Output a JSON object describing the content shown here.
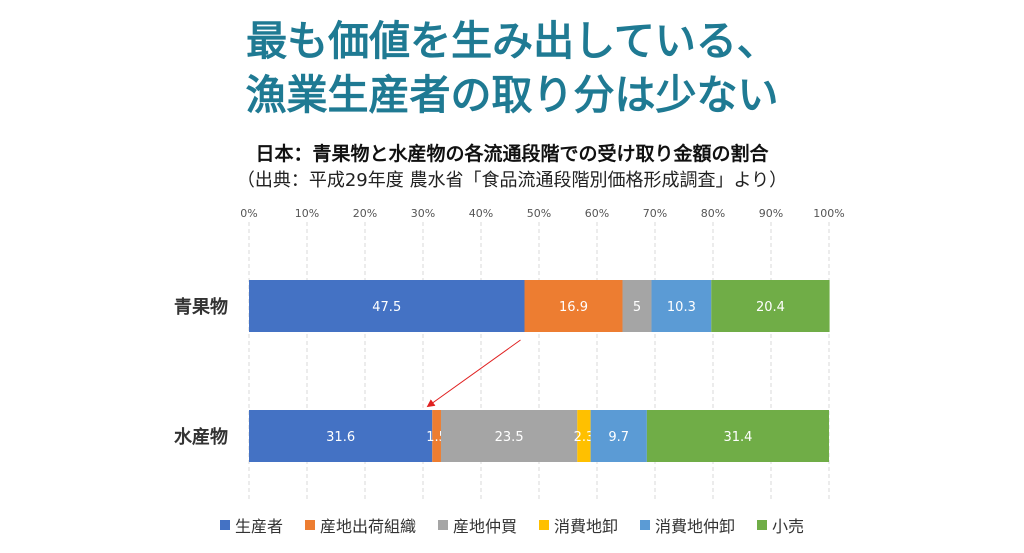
{
  "headline": {
    "line1": "最も価値を生み出している、",
    "line2": "漁業生産者の取り分は少ない"
  },
  "chart_data": {
    "type": "bar",
    "orientation": "horizontal",
    "stacked": true,
    "title": "日本：青果物と水産物の各流通段階での受け取り金額の割合",
    "subtitle": "（出典：平成29年度 農水省「食品流通段階別価格形成調査」より）",
    "categories": [
      "青果物",
      "水産物"
    ],
    "xlim": [
      0,
      100
    ],
    "xticks": [
      "0%",
      "10%",
      "20%",
      "30%",
      "40%",
      "50%",
      "60%",
      "70%",
      "80%",
      "90%",
      "100%"
    ],
    "grid": "vertical dashed",
    "legend_position": "bottom",
    "series": [
      {
        "name": "生産者",
        "color": "#4472c4",
        "values": [
          47.5,
          31.6
        ],
        "labels": [
          "47.5",
          "31.6"
        ]
      },
      {
        "name": "産地出荷組織",
        "color": "#ed7d31",
        "values": [
          16.9,
          1.5
        ],
        "labels": [
          "16.9",
          "1.5"
        ]
      },
      {
        "name": "産地仲買",
        "color": "#a5a5a5",
        "values": [
          5,
          23.5
        ],
        "labels": [
          "5",
          "23.5"
        ]
      },
      {
        "name": "消費地卸",
        "color": "#ffc000",
        "values": [
          0,
          2.3
        ],
        "labels": [
          "",
          "2.3"
        ]
      },
      {
        "name": "消費地仲卸",
        "color": "#5b9bd5",
        "values": [
          10.3,
          9.7
        ],
        "labels": [
          "10.3",
          "9.7"
        ]
      },
      {
        "name": "小売",
        "color": "#70ad47",
        "values": [
          20.4,
          31.4
        ],
        "labels": [
          "20.4",
          "31.4"
        ]
      }
    ],
    "annotation": {
      "type": "arrow",
      "color": "#e02020",
      "from_category": "青果物",
      "to_category": "水産物",
      "series": "生産者"
    }
  }
}
